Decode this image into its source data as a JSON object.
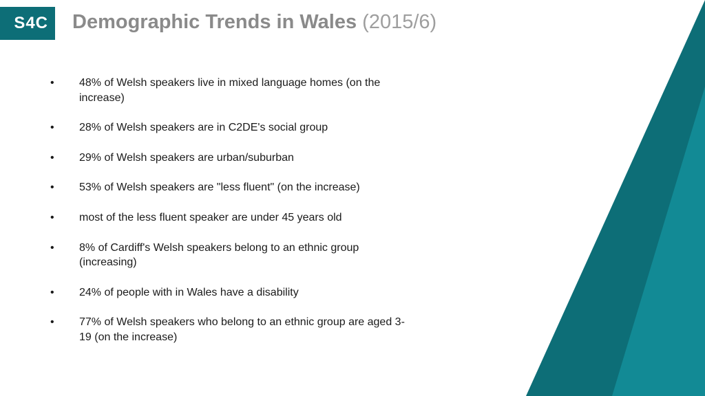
{
  "logo": {
    "text": "S4C",
    "bg": "#0d6e77",
    "fg": "#ffffff"
  },
  "title": {
    "main": "Demographic Trends in Wales",
    "suffix": "(2015/6)",
    "main_color": "#8a8a8a",
    "suffix_color": "#9e9e9e",
    "fontsize": 29
  },
  "bullets": [
    "48% of Welsh speakers live in mixed language homes (on the increase)",
    "28% of Welsh speakers are in C2DE's social group",
    "29% of Welsh speakers are urban/suburban",
    "53% of Welsh speakers are \"less fluent\" (on the increase)",
    "most of the less fluent speaker are under 45 years old",
    "8% of Cardiff's Welsh speakers belong to an ethnic group (increasing)",
    "24% of people with in Wales have a disability",
    "77% of Welsh speakers who belong to an ethnic group are aged 3-19 (on the increase)"
  ],
  "bullet_style": {
    "fontsize": 16,
    "color": "#1a1a1a",
    "marker": "•"
  },
  "accent": {
    "outer_color": "#0d6e77",
    "inner_color": "#128a95"
  },
  "background": "#ffffff"
}
